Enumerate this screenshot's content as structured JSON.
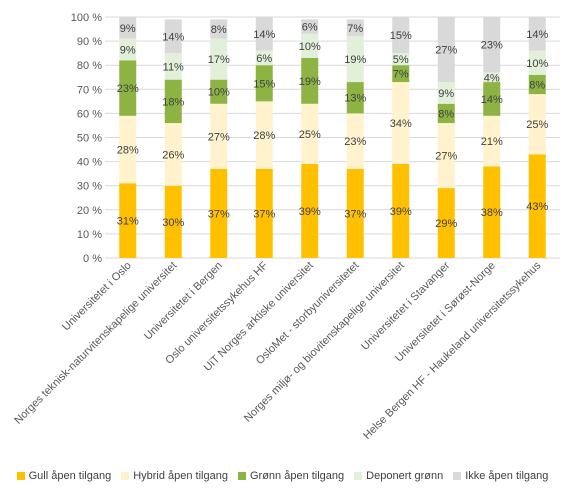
{
  "chart_data": {
    "type": "bar",
    "stacked": true,
    "percent": true,
    "categories": [
      "Universitetet i Oslo",
      "Norges teknisk-naturvitenskapelige universitet",
      "Universitetet i Bergen",
      "Oslo universitetssykehus HF",
      "UiT Norges arktiske universitet",
      "OsloMet - storbyuniversitetet",
      "Norges miljø- og biovitenskapelige universitet",
      "Universitetet i Stavanger",
      "Universitetet i Sørøst-Norge",
      "Helse Bergen HF - Haukeland universitetssykehus"
    ],
    "series": [
      {
        "name": "Gull åpen tilgang",
        "color": "#FFC000",
        "values": [
          31,
          30,
          37,
          37,
          39,
          37,
          39,
          29,
          38,
          43
        ]
      },
      {
        "name": "Hybrid åpen tilgang",
        "color": "#FFF2CC",
        "values": [
          28,
          26,
          27,
          28,
          25,
          23,
          34,
          27,
          21,
          25
        ]
      },
      {
        "name": "Grønn åpen tilgang",
        "color": "#8DB443",
        "values": [
          23,
          18,
          10,
          15,
          19,
          13,
          7,
          8,
          14,
          8
        ]
      },
      {
        "name": "Deponert grønn",
        "color": "#E2EFD9",
        "values": [
          9,
          11,
          17,
          6,
          10,
          19,
          5,
          9,
          4,
          10
        ]
      },
      {
        "name": "Ikke åpen tilgang",
        "color": "#D9D9D9",
        "values": [
          9,
          14,
          8,
          14,
          6,
          7,
          15,
          27,
          23,
          14
        ]
      }
    ],
    "data_labels": [
      [
        "31%",
        "30%",
        "37%",
        "37%",
        "39%",
        "37%",
        "39%",
        "29%",
        "38%",
        "43%"
      ],
      [
        "28%",
        "26%",
        "27%",
        "28%",
        "25%",
        "23%",
        "34%",
        "27%",
        "21%",
        "25%"
      ],
      [
        "23%",
        "18%",
        "10%",
        "15%",
        "19%",
        "13%",
        "7%",
        "8%",
        "14%",
        "8%"
      ],
      [
        "9%",
        "11%",
        "17%",
        "6%",
        "10%",
        "19%",
        "5%",
        "9%",
        "4%",
        "10%"
      ],
      [
        "9%",
        "14%",
        "8%",
        "14%",
        "6%",
        "7%",
        "15%",
        "27%",
        "23%",
        "14%"
      ]
    ],
    "y_ticks": [
      "0 %",
      "10 %",
      "20 %",
      "30 %",
      "40 %",
      "50 %",
      "60 %",
      "70 %",
      "80 %",
      "90 %",
      "100 %"
    ],
    "ylim": [
      0,
      100
    ],
    "title": "",
    "xlabel": "",
    "ylabel": "",
    "grid": true,
    "legend_position": "bottom"
  }
}
